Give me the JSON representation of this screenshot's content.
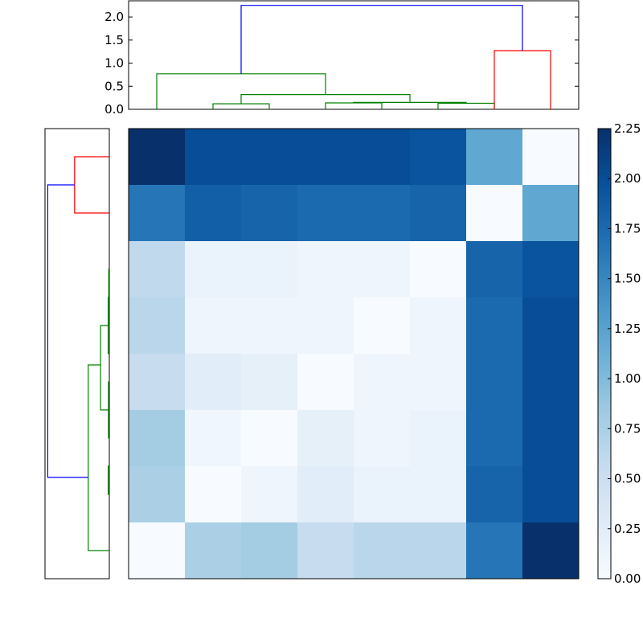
{
  "chart_data": [
    {
      "type": "dendrogram",
      "orientation": "top",
      "ylim": [
        0,
        2.35
      ],
      "yticks": [
        "0.0",
        "0.5",
        "1.0",
        "1.5",
        "2.0"
      ],
      "ytick_values": [
        0.0,
        0.5,
        1.0,
        1.5,
        2.0
      ],
      "xlim": [
        0,
        80
      ],
      "links": [
        {
          "x": [
            15,
            15,
            25,
            25
          ],
          "y": [
            0.0,
            0.12,
            0.12,
            0.0
          ],
          "color": "#008000"
        },
        {
          "x": [
            35,
            35,
            45,
            45
          ],
          "y": [
            0.0,
            0.14,
            0.14,
            0.0
          ],
          "color": "#008000"
        },
        {
          "x": [
            55,
            55,
            65,
            65
          ],
          "y": [
            0.0,
            0.13,
            0.13,
            0.0
          ],
          "color": "#008000"
        },
        {
          "x": [
            40,
            40,
            60,
            60
          ],
          "y": [
            0.14,
            0.15,
            0.15,
            0.13
          ],
          "color": "#008000"
        },
        {
          "x": [
            20,
            20,
            50,
            50
          ],
          "y": [
            0.12,
            0.32,
            0.32,
            0.15
          ],
          "color": "#008000"
        },
        {
          "x": [
            5,
            5,
            35,
            35
          ],
          "y": [
            0.0,
            0.77,
            0.77,
            0.32
          ],
          "color": "#008000"
        },
        {
          "x": [
            65,
            65,
            75,
            75
          ],
          "y": [
            0.0,
            1.27,
            1.27,
            0.0
          ],
          "color": "#ff0000"
        },
        {
          "x": [
            20,
            20,
            70,
            70
          ],
          "y": [
            0.77,
            2.25,
            2.25,
            1.27
          ],
          "color": "#0000ff"
        }
      ]
    },
    {
      "type": "dendrogram",
      "orientation": "left",
      "ylim": [
        0,
        80
      ],
      "xlim": [
        0,
        2.35
      ],
      "links": [
        {
          "y": [
            5,
            5,
            15,
            15
          ],
          "x": [
            0.0,
            1.27,
            1.27,
            0.0
          ],
          "color": "#ff0000"
        },
        {
          "y": [
            25,
            25,
            35,
            35
          ],
          "x": [
            0.0,
            0.02,
            0.02,
            0.0
          ],
          "color": "#008000"
        },
        {
          "y": [
            45,
            45,
            55,
            55
          ],
          "x": [
            0.0,
            0.03,
            0.03,
            0.0
          ],
          "color": "#008000"
        },
        {
          "y": [
            30,
            30,
            40,
            40
          ],
          "x": [
            0.02,
            0.04,
            0.04,
            0.0
          ],
          "color": "#008000"
        },
        {
          "y": [
            60,
            60,
            65,
            65
          ],
          "x": [
            0.0,
            0.04,
            0.04,
            0.0
          ],
          "color": "#008000"
        },
        {
          "y": [
            35,
            35,
            50,
            50
          ],
          "x": [
            0.04,
            0.32,
            0.32,
            0.03
          ],
          "color": "#008000"
        },
        {
          "y": [
            42,
            42,
            75,
            75
          ],
          "x": [
            0.32,
            0.77,
            0.77,
            0.0
          ],
          "color": "#008000"
        },
        {
          "y": [
            10,
            10,
            62,
            62
          ],
          "x": [
            1.27,
            2.25,
            2.25,
            0.77
          ],
          "color": "#0000ff"
        }
      ]
    },
    {
      "type": "heatmap",
      "colormap": "Blues",
      "vmin": 0.0,
      "vmax": 2.25,
      "values": [
        [
          2.25,
          2.0,
          2.0,
          2.0,
          2.0,
          1.95,
          1.2,
          0.0
        ],
        [
          1.65,
          1.85,
          1.8,
          1.75,
          1.75,
          1.8,
          0.0,
          1.2
        ],
        [
          0.6,
          0.15,
          0.15,
          0.1,
          0.1,
          0.0,
          1.8,
          1.95
        ],
        [
          0.65,
          0.1,
          0.1,
          0.1,
          0.0,
          0.1,
          1.75,
          2.0
        ],
        [
          0.55,
          0.25,
          0.2,
          0.0,
          0.1,
          0.1,
          1.75,
          2.0
        ],
        [
          0.8,
          0.08,
          0.0,
          0.2,
          0.1,
          0.15,
          1.75,
          2.0
        ],
        [
          0.75,
          0.0,
          0.1,
          0.25,
          0.15,
          0.15,
          1.8,
          2.0
        ],
        [
          0.0,
          0.75,
          0.8,
          0.55,
          0.65,
          0.65,
          1.65,
          2.25
        ]
      ]
    },
    {
      "type": "colorbar",
      "colormap": "Blues",
      "vmin": 0.0,
      "vmax": 2.25,
      "ticks": [
        "0.00",
        "0.25",
        "0.50",
        "0.75",
        "1.00",
        "1.25",
        "1.50",
        "1.75",
        "2.00",
        "2.25"
      ],
      "tick_values": [
        0.0,
        0.25,
        0.5,
        0.75,
        1.0,
        1.25,
        1.5,
        1.75,
        2.0,
        2.25
      ]
    }
  ]
}
